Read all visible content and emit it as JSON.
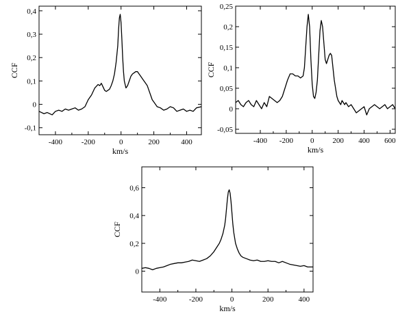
{
  "chart_data": [
    {
      "type": "line",
      "xlabel": "km/s",
      "ylabel": "CCF",
      "xlim": [
        -500,
        490
      ],
      "ylim": [
        -0.13,
        0.42
      ],
      "xticks": [
        -400,
        -200,
        0,
        200,
        400
      ],
      "xtick_labels": [
        "-400",
        "-200",
        "0",
        "200",
        "400"
      ],
      "yticks": [
        -0.1,
        0,
        0.1,
        0.2,
        0.3,
        0.4
      ],
      "ytick_labels": [
        "-0,1",
        "0",
        "0,1",
        "0,2",
        "0,3",
        "0,4"
      ],
      "series": [
        {
          "x": [
            -500,
            -470,
            -450,
            -420,
            -400,
            -380,
            -360,
            -340,
            -320,
            -300,
            -280,
            -260,
            -240,
            -220,
            -200,
            -180,
            -160,
            -140,
            -130,
            -120,
            -110,
            -100,
            -90,
            -80,
            -70,
            -60,
            -50,
            -40,
            -30,
            -20,
            -15,
            -10,
            -5,
            0,
            5,
            10,
            15,
            20,
            30,
            40,
            50,
            60,
            70,
            80,
            90,
            100,
            110,
            120,
            130,
            140,
            150,
            160,
            170,
            180,
            190,
            200,
            210,
            220,
            240,
            260,
            280,
            300,
            320,
            340,
            360,
            380,
            400,
            420,
            440,
            460,
            490
          ],
          "y": [
            -0.03,
            -0.04,
            -0.035,
            -0.045,
            -0.03,
            -0.025,
            -0.03,
            -0.02,
            -0.025,
            -0.02,
            -0.015,
            -0.025,
            -0.02,
            -0.01,
            0.02,
            0.04,
            0.07,
            0.085,
            0.08,
            0.09,
            0.075,
            0.06,
            0.055,
            0.06,
            0.065,
            0.08,
            0.1,
            0.13,
            0.18,
            0.25,
            0.32,
            0.37,
            0.385,
            0.35,
            0.28,
            0.2,
            0.14,
            0.1,
            0.07,
            0.08,
            0.1,
            0.12,
            0.13,
            0.135,
            0.14,
            0.14,
            0.13,
            0.12,
            0.11,
            0.1,
            0.09,
            0.08,
            0.06,
            0.04,
            0.02,
            0.01,
            0.0,
            -0.01,
            -0.015,
            -0.025,
            -0.02,
            -0.01,
            -0.015,
            -0.03,
            -0.025,
            -0.02,
            -0.03,
            -0.025,
            -0.03,
            -0.015,
            -0.01
          ]
        }
      ]
    },
    {
      "type": "line",
      "xlabel": "km/s",
      "ylabel": "CCF",
      "xlim": [
        -590,
        640
      ],
      "ylim": [
        -0.06,
        0.25
      ],
      "xticks": [
        -400,
        -200,
        0,
        200,
        400,
        600
      ],
      "xtick_labels": [
        "-400",
        "-200",
        "0",
        "200",
        "400",
        "600"
      ],
      "yticks": [
        -0.05,
        0,
        0.05,
        0.1,
        0.15,
        0.2,
        0.25
      ],
      "ytick_labels": [
        "-0,05",
        "0",
        "0,05",
        "0,1",
        "0,15",
        "0,2",
        "0,25"
      ],
      "series": [
        {
          "x": [
            -590,
            -570,
            -550,
            -530,
            -510,
            -490,
            -470,
            -450,
            -430,
            -410,
            -390,
            -370,
            -350,
            -330,
            -310,
            -290,
            -270,
            -250,
            -230,
            -210,
            -190,
            -170,
            -150,
            -130,
            -110,
            -90,
            -70,
            -60,
            -50,
            -40,
            -30,
            -20,
            -10,
            0,
            10,
            20,
            30,
            40,
            50,
            60,
            70,
            80,
            90,
            100,
            110,
            120,
            130,
            140,
            150,
            160,
            170,
            180,
            190,
            200,
            210,
            220,
            230,
            240,
            250,
            260,
            280,
            300,
            320,
            340,
            360,
            380,
            400,
            420,
            440,
            460,
            480,
            500,
            520,
            540,
            560,
            580,
            600,
            620,
            640
          ],
          "y": [
            0.015,
            0.02,
            0.01,
            0.005,
            0.015,
            0.02,
            0.01,
            0.005,
            0.02,
            0.01,
            0.0,
            0.015,
            0.005,
            0.03,
            0.025,
            0.02,
            0.015,
            0.02,
            0.03,
            0.05,
            0.07,
            0.085,
            0.085,
            0.08,
            0.08,
            0.075,
            0.08,
            0.1,
            0.15,
            0.2,
            0.23,
            0.2,
            0.12,
            0.06,
            0.03,
            0.025,
            0.04,
            0.07,
            0.13,
            0.19,
            0.215,
            0.2,
            0.16,
            0.12,
            0.11,
            0.12,
            0.13,
            0.135,
            0.13,
            0.1,
            0.07,
            0.05,
            0.03,
            0.02,
            0.015,
            0.01,
            0.02,
            0.015,
            0.01,
            0.015,
            0.005,
            0.01,
            0.0,
            -0.01,
            -0.005,
            0.0,
            0.005,
            -0.015,
            0.0,
            0.005,
            0.01,
            0.005,
            0.0,
            0.005,
            0.01,
            0.0,
            0.005,
            0.01,
            0.0
          ]
        }
      ]
    },
    {
      "type": "line",
      "xlabel": "km/s",
      "ylabel": "CCF",
      "xlim": [
        -500,
        450
      ],
      "ylim": [
        -0.15,
        0.75
      ],
      "xticks": [
        -400,
        -200,
        0,
        200,
        400
      ],
      "xtick_labels": [
        "-400",
        "-200",
        "0",
        "200",
        "400"
      ],
      "yticks": [
        0,
        0.2,
        0.4,
        0.6
      ],
      "ytick_labels": [
        "0",
        "0,2",
        "0,4",
        "0,6"
      ],
      "series": [
        {
          "x": [
            -500,
            -480,
            -460,
            -440,
            -420,
            -400,
            -380,
            -360,
            -340,
            -320,
            -300,
            -280,
            -260,
            -240,
            -220,
            -200,
            -180,
            -160,
            -140,
            -120,
            -100,
            -80,
            -70,
            -60,
            -50,
            -40,
            -35,
            -30,
            -25,
            -20,
            -15,
            -10,
            -5,
            0,
            5,
            10,
            20,
            30,
            40,
            50,
            60,
            80,
            100,
            120,
            140,
            160,
            180,
            200,
            220,
            240,
            260,
            280,
            300,
            320,
            340,
            360,
            380,
            400,
            420,
            450
          ],
          "y": [
            0.02,
            0.025,
            0.02,
            0.01,
            0.02,
            0.025,
            0.03,
            0.04,
            0.05,
            0.055,
            0.06,
            0.06,
            0.065,
            0.07,
            0.08,
            0.075,
            0.07,
            0.08,
            0.09,
            0.11,
            0.14,
            0.18,
            0.2,
            0.23,
            0.27,
            0.33,
            0.38,
            0.45,
            0.52,
            0.57,
            0.585,
            0.56,
            0.5,
            0.42,
            0.34,
            0.28,
            0.2,
            0.16,
            0.13,
            0.11,
            0.1,
            0.09,
            0.08,
            0.075,
            0.08,
            0.07,
            0.07,
            0.075,
            0.07,
            0.07,
            0.06,
            0.07,
            0.06,
            0.05,
            0.045,
            0.04,
            0.035,
            0.04,
            0.03,
            0.03
          ]
        }
      ]
    }
  ]
}
